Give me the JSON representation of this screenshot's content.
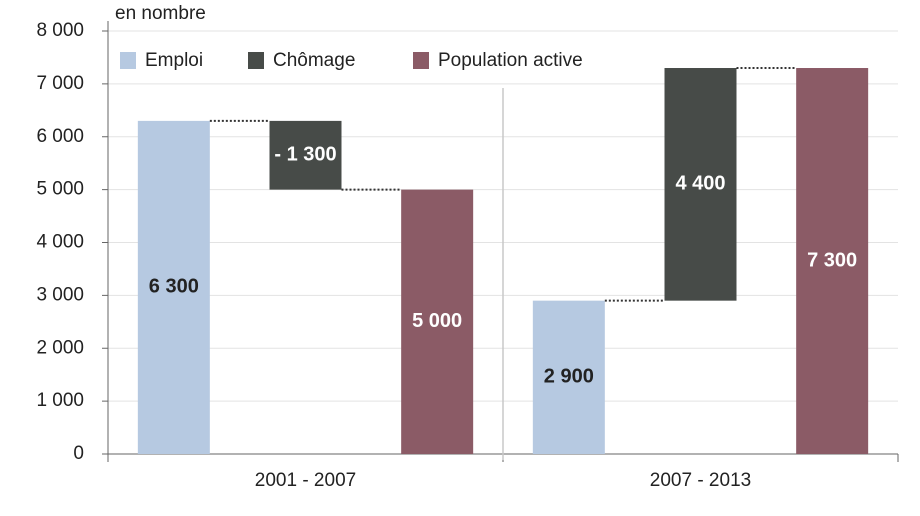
{
  "chart_data": {
    "type": "waterfall",
    "y_axis_label": "en nombre",
    "categories": [
      "2001 - 2007",
      "2007 - 2013"
    ],
    "series": [
      {
        "name": "Emploi",
        "color": "#b6c9e1",
        "label_color": "#222222",
        "values": [
          6300,
          2900
        ],
        "value_labels": [
          "6 300",
          "2 900"
        ]
      },
      {
        "name": "Chômage",
        "color": "#474b48",
        "label_color": "#ffffff",
        "values": [
          -1300,
          4400
        ],
        "value_labels": [
          "- 1 300",
          "4 400"
        ]
      },
      {
        "name": "Population active",
        "color": "#8b5b66",
        "label_color": "#ffffff",
        "values": [
          5000,
          7300
        ],
        "value_labels": [
          "5 000",
          "7 300"
        ]
      }
    ],
    "ylim": [
      0,
      8000
    ],
    "yticks": [
      0,
      {
        "value": 1000,
        "label": "1 000"
      },
      {
        "value": 2000,
        "label": "2 000"
      },
      {
        "value": 3000,
        "label": "3 000"
      },
      {
        "value": 4000,
        "label": "4 000"
      },
      {
        "value": 5000,
        "label": "5 000"
      },
      {
        "value": 6000,
        "label": "6 000"
      },
      {
        "value": 7000,
        "label": "7 000"
      },
      {
        "value": 8000,
        "label": "8 000"
      }
    ],
    "grid": true,
    "legend": "top"
  }
}
